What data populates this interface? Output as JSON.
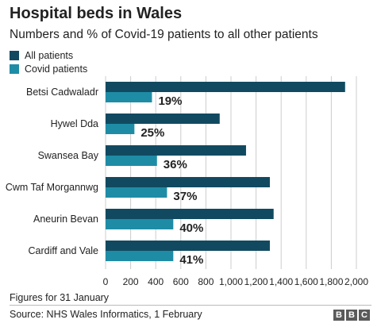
{
  "title": "Hospital beds in Wales",
  "subtitle": "Numbers and % of Covid-19 patients to all other patients",
  "footnote": "Figures for 31 January",
  "source": "Source: NHS Wales Informatics, 1 February",
  "logo": [
    "B",
    "B",
    "C"
  ],
  "colors": {
    "all": "#114a60",
    "covid": "#1f8ca6",
    "grid": "#cccccc",
    "text": "#222222"
  },
  "chart_data": {
    "type": "bar",
    "orientation": "horizontal",
    "title": "Hospital beds in Wales",
    "subtitle": "Numbers and % of Covid-19 patients to all other patients",
    "categories": [
      "Betsi Cadwaladr",
      "Hywel Dda",
      "Swansea Bay",
      "Cwm Taf Morgannwg",
      "Aneurin Bevan",
      "Cardiff and Vale"
    ],
    "series": [
      {
        "name": "All patients",
        "values": [
          1910,
          910,
          1120,
          1310,
          1340,
          1310
        ]
      },
      {
        "name": "Covid patients",
        "values": [
          370,
          230,
          410,
          490,
          540,
          540
        ]
      }
    ],
    "data_labels": [
      "19%",
      "25%",
      "36%",
      "37%",
      "40%",
      "41%"
    ],
    "xlim": [
      0,
      2000
    ],
    "x_ticks": [
      "0",
      "200",
      "400",
      "600",
      "800",
      "1,000",
      "1,200",
      "1,400",
      "1,600",
      "1,800",
      "2,000"
    ],
    "grid": true,
    "legend": "top-left"
  }
}
